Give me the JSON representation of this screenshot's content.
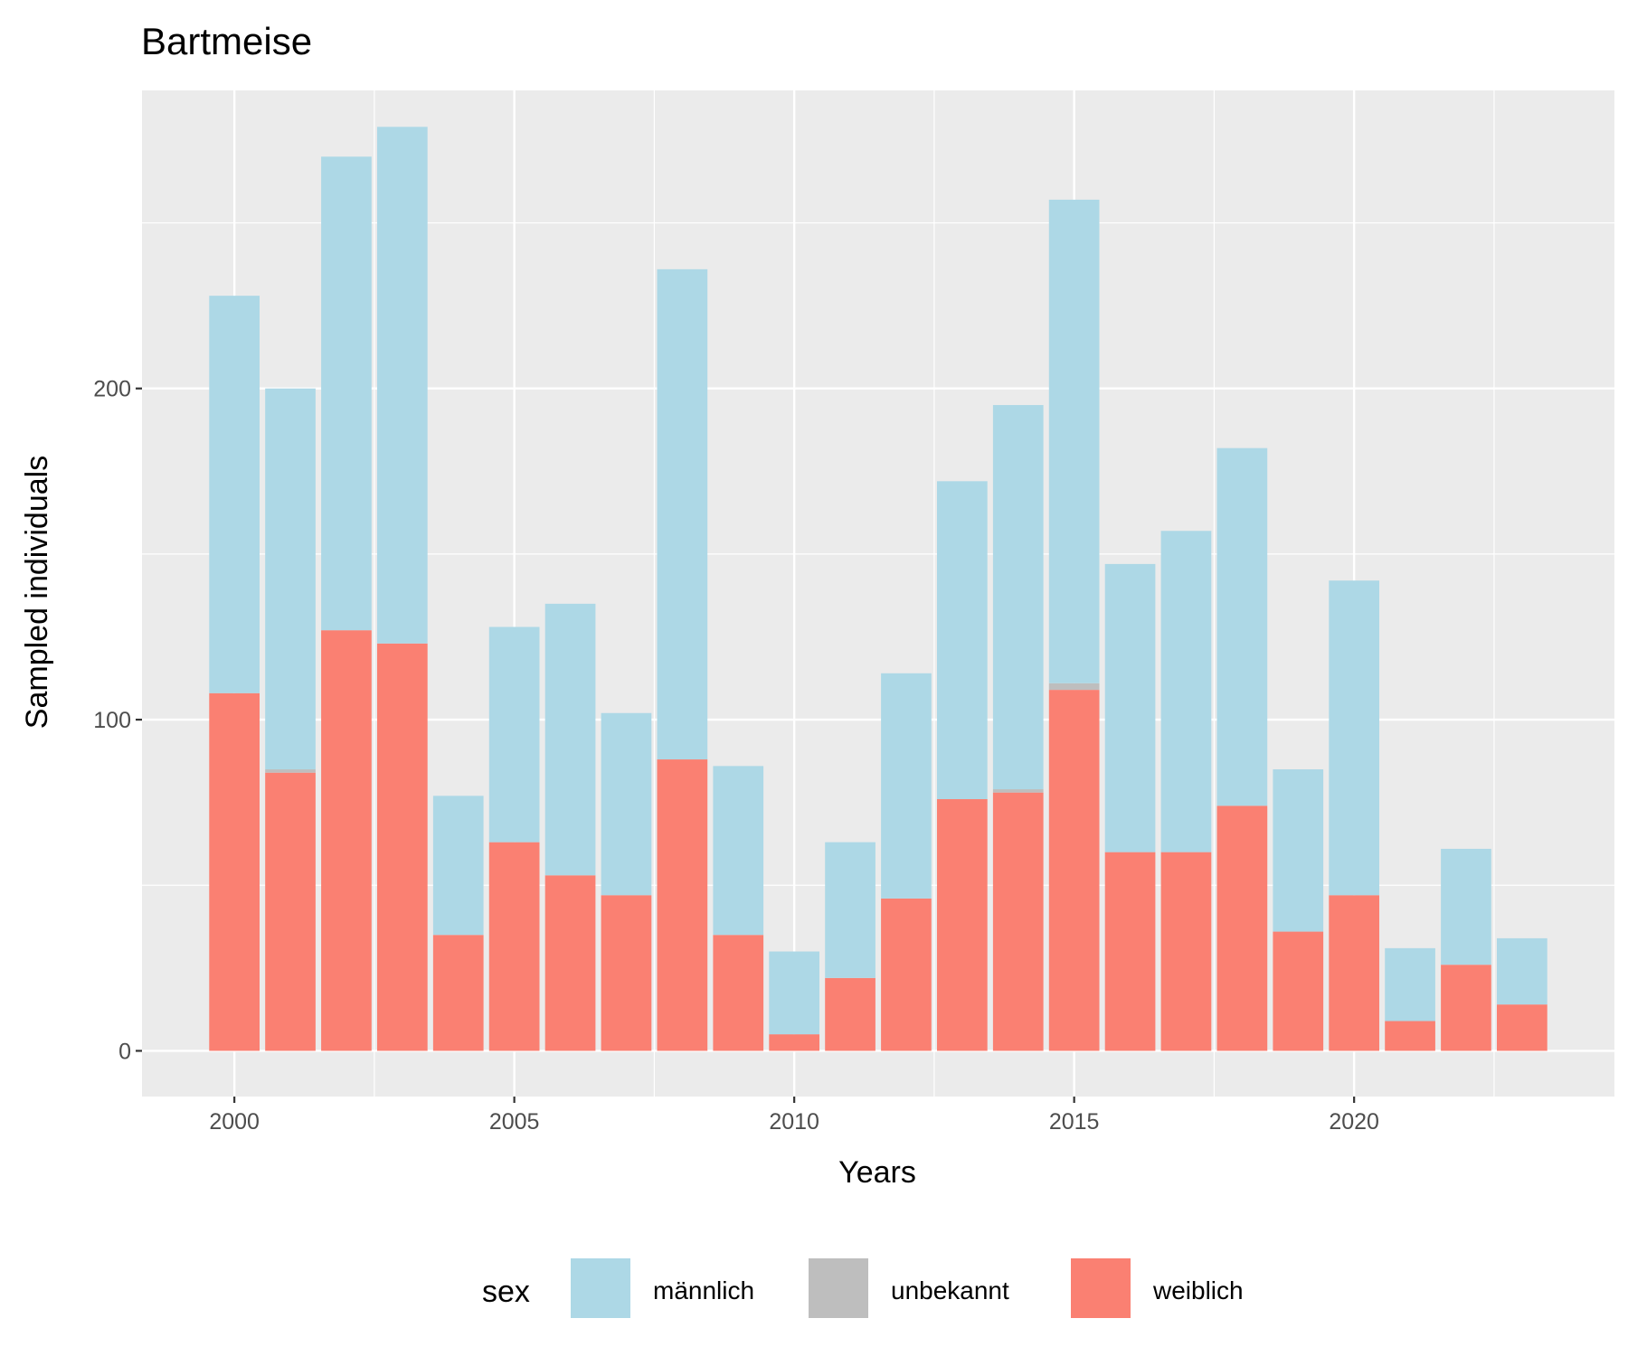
{
  "chart_data": {
    "type": "bar",
    "stacked": true,
    "title": "Bartmeise",
    "xlabel": "Years",
    "ylabel": "Sampled individuals",
    "x": [
      2000,
      2001,
      2002,
      2003,
      2004,
      2005,
      2006,
      2007,
      2008,
      2009,
      2010,
      2011,
      2012,
      2013,
      2014,
      2015,
      2016,
      2017,
      2018,
      2019,
      2020,
      2021,
      2022,
      2023
    ],
    "xlim": [
      1998.35,
      2024.65
    ],
    "ylim": [
      -13.8,
      290
    ],
    "x_ticks": [
      2000,
      2005,
      2010,
      2015,
      2020
    ],
    "x_tick_labels": [
      "2000",
      "2005",
      "2010",
      "2015",
      "2020"
    ],
    "y_ticks": [
      0,
      100,
      200
    ],
    "y_tick_labels": [
      "0",
      "100",
      "200"
    ],
    "y_minor_ticks": [
      50,
      150,
      250
    ],
    "grid": true,
    "background": "#ebebeb",
    "legend": {
      "title": "sex",
      "position": "bottom"
    },
    "series": [
      {
        "name": "weiblich",
        "color": "#fa8072",
        "values": [
          108,
          84,
          127,
          123,
          35,
          63,
          53,
          47,
          88,
          35,
          5,
          22,
          46,
          76,
          78,
          109,
          60,
          60,
          74,
          36,
          47,
          9,
          26,
          14
        ]
      },
      {
        "name": "unbekannt",
        "color": "#bebebe",
        "values": [
          0,
          1,
          0,
          0,
          0,
          0,
          0,
          0,
          0,
          0,
          0,
          0,
          0,
          0,
          1,
          2,
          0,
          0,
          0,
          0,
          0,
          0,
          0,
          0
        ]
      },
      {
        "name": "männlich",
        "color": "#add8e6",
        "values": [
          120,
          115,
          143,
          156,
          42,
          65,
          82,
          55,
          148,
          51,
          25,
          41,
          68,
          96,
          116,
          146,
          87,
          97,
          108,
          49,
          95,
          22,
          35,
          20
        ]
      }
    ],
    "legend_order": [
      "männlich",
      "unbekannt",
      "weiblich"
    ]
  }
}
